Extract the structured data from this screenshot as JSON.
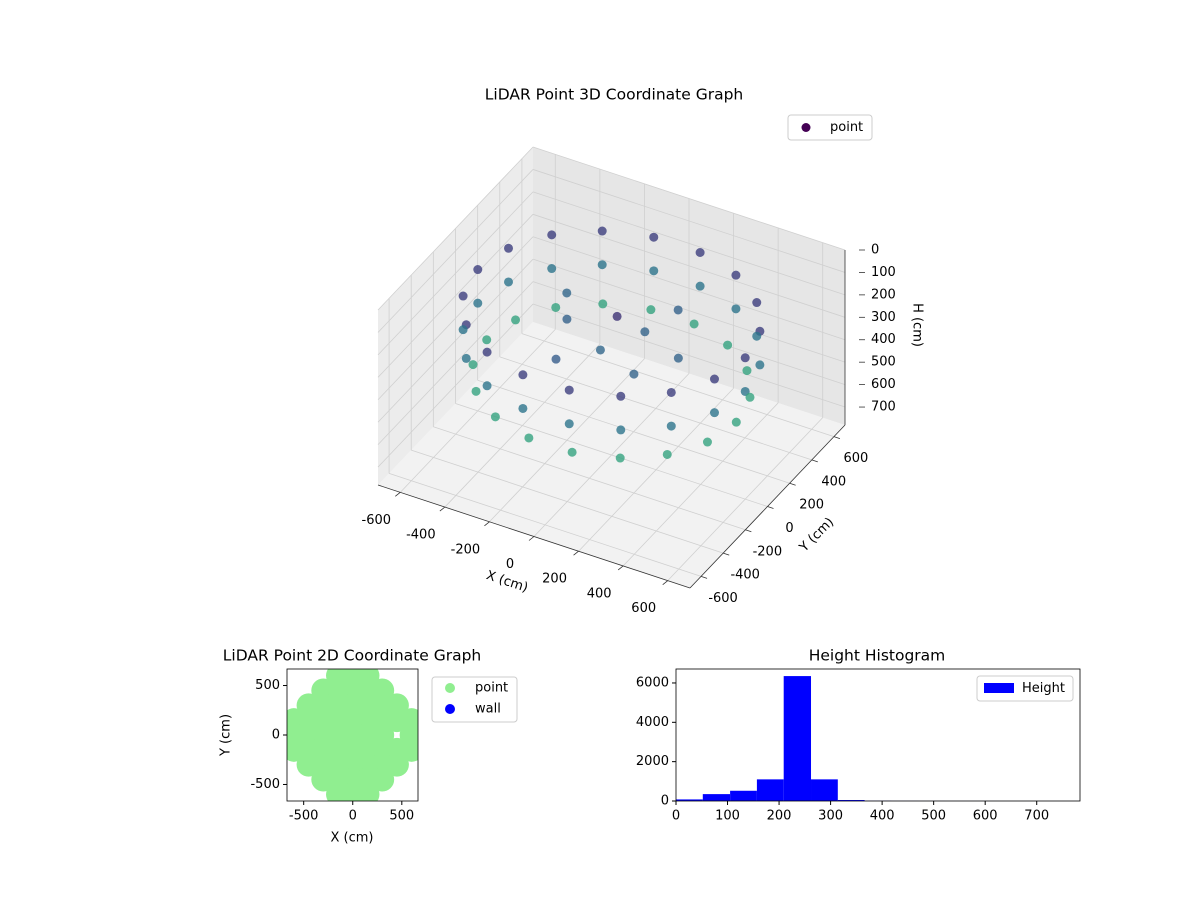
{
  "chart_data": [
    {
      "type": "scatter3d",
      "title": "LiDAR Point 3D Coordinate Graph",
      "xlabel": "X (cm)",
      "ylabel": "Y (cm)",
      "zlabel": "H (cm)",
      "xlim": [
        -700,
        700
      ],
      "ylim": [
        -700,
        700
      ],
      "zlim": [
        0,
        780
      ],
      "z_inverted": true,
      "xticks": [
        -600,
        -400,
        -200,
        0,
        200,
        400,
        600
      ],
      "yticks": [
        -600,
        -400,
        -200,
        0,
        200,
        400,
        600
      ],
      "zticks": [
        0,
        100,
        200,
        300,
        400,
        500,
        600,
        700
      ],
      "grid": true,
      "legend": "upper right",
      "colormap": "viridis",
      "series": [
        {
          "name": "point",
          "color": "#440154",
          "x": [
            600,
            564,
            460,
            300,
            104,
            -104,
            -300,
            -460,
            -564,
            -600,
            -564,
            -460,
            -300,
            -104,
            104,
            300,
            460,
            564,
            600,
            564,
            460,
            300,
            104,
            -104,
            -300,
            -460,
            -564,
            -600,
            -564,
            -460,
            -300,
            -104,
            104,
            300,
            460,
            564,
            560,
            526,
            429,
            280,
            97,
            -97,
            -280,
            -429,
            -526,
            -560,
            -526,
            -429,
            -280,
            -97,
            97,
            280,
            429,
            526,
            100,
            0,
            -200,
            200,
            -100,
            300,
            -300,
            150,
            50
          ],
          "y": [
            0,
            205,
            386,
            520,
            591,
            591,
            520,
            386,
            205,
            0,
            -205,
            -386,
            -520,
            -591,
            -591,
            -520,
            -386,
            -205,
            0,
            205,
            386,
            520,
            591,
            591,
            520,
            386,
            205,
            0,
            -205,
            -386,
            -520,
            -591,
            -591,
            -520,
            -386,
            -205,
            0,
            192,
            360,
            485,
            551,
            551,
            485,
            360,
            192,
            0,
            -192,
            -360,
            -485,
            -551,
            -551,
            -485,
            -360,
            -192,
            100,
            -100,
            0,
            -200,
            -300,
            0,
            200,
            300,
            -50
          ],
          "z": [
            150,
            150,
            150,
            150,
            150,
            150,
            150,
            150,
            150,
            150,
            150,
            150,
            150,
            150,
            150,
            150,
            150,
            150,
            300,
            300,
            300,
            300,
            300,
            300,
            300,
            300,
            300,
            300,
            300,
            300,
            300,
            300,
            300,
            300,
            300,
            300,
            450,
            450,
            450,
            450,
            450,
            450,
            450,
            450,
            450,
            450,
            450,
            450,
            450,
            450,
            450,
            450,
            450,
            450,
            250,
            260,
            240,
            250,
            230,
            250,
            260,
            240,
            120
          ]
        }
      ]
    },
    {
      "type": "scatter",
      "title": "LiDAR Point 2D Coordinate Graph",
      "xlabel": "X (cm)",
      "ylabel": "Y (cm)",
      "xlim": [
        -670,
        665
      ],
      "ylim": [
        -667,
        667
      ],
      "xticks": [
        -500,
        0,
        500
      ],
      "yticks": [
        -500,
        0,
        500
      ],
      "legend": "outside right",
      "series": [
        {
          "name": "point",
          "color": "#90ee90",
          "x": [
            -150,
            0,
            150,
            -300,
            -150,
            0,
            150,
            300,
            -450,
            -300,
            -150,
            0,
            150,
            300,
            450,
            -600,
            -450,
            -300,
            -150,
            0,
            150,
            300,
            450,
            600,
            -600,
            -450,
            -300,
            -150,
            0,
            150,
            300,
            600,
            -600,
            -450,
            -300,
            -150,
            0,
            150,
            300,
            450,
            600,
            -450,
            -300,
            -150,
            0,
            150,
            300,
            450,
            -300,
            -150,
            0,
            150,
            300,
            -150,
            0,
            150
          ],
          "y": [
            600,
            600,
            600,
            450,
            450,
            450,
            450,
            450,
            300,
            300,
            300,
            300,
            300,
            300,
            300,
            150,
            150,
            150,
            150,
            150,
            150,
            150,
            150,
            150,
            0,
            0,
            0,
            0,
            0,
            0,
            0,
            0,
            -150,
            -150,
            -150,
            -150,
            -150,
            -150,
            -150,
            -150,
            -150,
            -300,
            -300,
            -300,
            -300,
            -300,
            -300,
            -300,
            -450,
            -450,
            -450,
            -450,
            -450,
            -600,
            -600,
            -600
          ]
        },
        {
          "name": "wall",
          "color": "#0000ff",
          "x": [],
          "y": []
        }
      ]
    },
    {
      "type": "histogram",
      "title": "Height Histogram",
      "xlim": [
        0,
        784
      ],
      "ylim": [
        0,
        6710
      ],
      "xticks": [
        0,
        100,
        200,
        300,
        400,
        500,
        600,
        700
      ],
      "yticks": [
        0,
        2000,
        4000,
        6000
      ],
      "legend": "upper right",
      "bins": [
        0,
        52,
        105,
        157,
        209,
        262,
        314,
        366,
        418,
        471,
        523,
        575,
        628,
        680,
        732,
        784
      ],
      "series": [
        {
          "name": "Height",
          "color": "#0000ff",
          "values": [
            80,
            350,
            520,
            1100,
            6350,
            1100,
            50,
            10,
            5,
            3,
            2,
            2,
            1,
            1,
            1
          ]
        }
      ]
    }
  ]
}
